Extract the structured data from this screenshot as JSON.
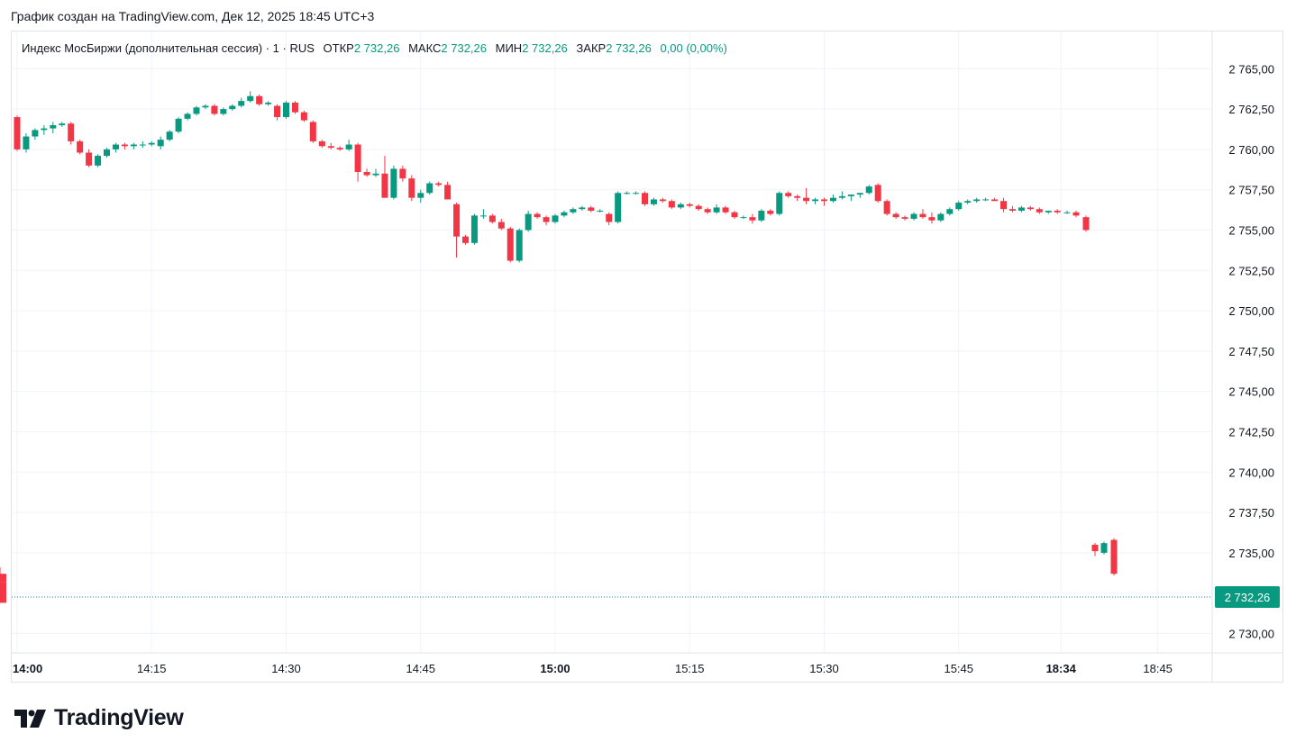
{
  "header": {
    "caption": "График создан на TradingView.com, Дек 12, 2025 18:45 UTC+3"
  },
  "legend": {
    "symbol": "Индекс МосБиржи (дополнительная сессия) · 1 · RUS",
    "open_label": "ОТКР",
    "open_value": "2 732,26",
    "high_label": "МАКС",
    "high_value": "2 732,26",
    "low_label": "МИН",
    "low_value": "2 732,26",
    "close_label": "ЗАКР",
    "close_value": "2 732,26",
    "change": "0,00 (0,00%)"
  },
  "price_tag": "2 732,26",
  "branding": {
    "logo_text": "TradingView"
  },
  "colors": {
    "up": "#089981",
    "down": "#f23645",
    "grid": "#f0f3fa",
    "text": "#131722",
    "last_price": "#089981"
  },
  "chart_data": {
    "type": "candlestick",
    "ylim": [
      2728.5,
      2767.5
    ],
    "y_ticks": [
      "2 765,00",
      "2 762,50",
      "2 760,00",
      "2 757,50",
      "2 755,00",
      "2 752,50",
      "2 750,00",
      "2 747,50",
      "2 745,00",
      "2 742,50",
      "2 740,00",
      "2 737,50",
      "2 735,00",
      "2 732,50",
      "2 730,00"
    ],
    "y_tick_values": [
      2765,
      2762.5,
      2760,
      2757.5,
      2755,
      2752.5,
      2750,
      2747.5,
      2745,
      2742.5,
      2740,
      2737.5,
      2735,
      2732.5,
      2730
    ],
    "x_ticks": [
      {
        "label": "14:00",
        "bar": 0,
        "bold": true
      },
      {
        "label": "14:15",
        "bar": 15,
        "bold": false
      },
      {
        "label": "14:30",
        "bar": 30,
        "bold": false
      },
      {
        "label": "14:45",
        "bar": 45,
        "bold": false
      },
      {
        "label": "15:00",
        "bar": 60,
        "bold": true
      },
      {
        "label": "15:15",
        "bar": 75,
        "bold": false
      },
      {
        "label": "15:30",
        "bar": 90,
        "bold": false
      },
      {
        "label": "15:45",
        "bar": 105,
        "bold": false
      },
      {
        "label": "18:34",
        "bar": 116,
        "bold": true
      },
      {
        "label": "18:45",
        "bar": 127,
        "bold": false
      }
    ],
    "last_price": 2732.26,
    "candles": [
      [
        2762.0,
        2762.1,
        2759.9,
        2760.0
      ],
      [
        2760.0,
        2761.0,
        2759.8,
        2760.8
      ],
      [
        2760.8,
        2761.3,
        2760.6,
        2761.2
      ],
      [
        2761.2,
        2761.5,
        2760.9,
        2761.3
      ],
      [
        2761.3,
        2761.7,
        2761.0,
        2761.5
      ],
      [
        2761.5,
        2761.7,
        2761.4,
        2761.6
      ],
      [
        2761.6,
        2761.7,
        2760.3,
        2760.5
      ],
      [
        2760.5,
        2760.6,
        2759.7,
        2759.8
      ],
      [
        2759.8,
        2760.0,
        2758.9,
        2759.0
      ],
      [
        2759.0,
        2759.7,
        2758.9,
        2759.6
      ],
      [
        2759.6,
        2760.1,
        2759.5,
        2760.0
      ],
      [
        2760.0,
        2760.4,
        2759.8,
        2760.3
      ],
      [
        2760.3,
        2760.4,
        2760.0,
        2760.2
      ],
      [
        2760.2,
        2760.4,
        2760.0,
        2760.3
      ],
      [
        2760.3,
        2760.5,
        2760.1,
        2760.3
      ],
      [
        2760.3,
        2760.5,
        2760.2,
        2760.4
      ],
      [
        2760.2,
        2760.8,
        2760.0,
        2760.6
      ],
      [
        2760.6,
        2761.2,
        2760.5,
        2761.1
      ],
      [
        2761.1,
        2762.0,
        2761.0,
        2761.9
      ],
      [
        2761.9,
        2762.3,
        2761.8,
        2762.2
      ],
      [
        2762.2,
        2762.7,
        2762.1,
        2762.6
      ],
      [
        2762.6,
        2762.8,
        2762.5,
        2762.7
      ],
      [
        2762.7,
        2762.8,
        2762.1,
        2762.2
      ],
      [
        2762.2,
        2762.6,
        2762.1,
        2762.5
      ],
      [
        2762.5,
        2762.8,
        2762.4,
        2762.7
      ],
      [
        2762.7,
        2763.2,
        2762.6,
        2763.0
      ],
      [
        2763.0,
        2763.6,
        2762.9,
        2763.3
      ],
      [
        2763.3,
        2763.4,
        2762.7,
        2762.8
      ],
      [
        2762.8,
        2763.0,
        2762.7,
        2762.9
      ],
      [
        2762.7,
        2762.8,
        2761.8,
        2762.0
      ],
      [
        2762.0,
        2763.0,
        2761.9,
        2762.9
      ],
      [
        2762.9,
        2763.0,
        2762.2,
        2762.3
      ],
      [
        2762.3,
        2762.4,
        2761.7,
        2761.8
      ],
      [
        2761.7,
        2761.8,
        2760.4,
        2760.5
      ],
      [
        2760.5,
        2760.6,
        2760.1,
        2760.2
      ],
      [
        2760.2,
        2760.4,
        2760.0,
        2760.1
      ],
      [
        2760.1,
        2760.2,
        2759.9,
        2760.0
      ],
      [
        2760.0,
        2760.6,
        2759.9,
        2760.3
      ],
      [
        2760.3,
        2760.4,
        2758.0,
        2758.6
      ],
      [
        2758.6,
        2758.8,
        2758.3,
        2758.4
      ],
      [
        2758.4,
        2758.8,
        2758.3,
        2758.5
      ],
      [
        2758.5,
        2759.6,
        2757.0,
        2757.0
      ],
      [
        2757.0,
        2759.0,
        2756.9,
        2758.8
      ],
      [
        2758.8,
        2759.0,
        2758.0,
        2758.2
      ],
      [
        2758.2,
        2758.4,
        2756.8,
        2757.0
      ],
      [
        2757.0,
        2757.5,
        2756.7,
        2757.3
      ],
      [
        2757.3,
        2758.0,
        2757.2,
        2757.9
      ],
      [
        2757.9,
        2758.0,
        2757.7,
        2757.8
      ],
      [
        2757.8,
        2758.0,
        2756.9,
        2756.9
      ],
      [
        2756.6,
        2756.7,
        2753.3,
        2754.6
      ],
      [
        2754.6,
        2754.7,
        2754.1,
        2754.2
      ],
      [
        2754.2,
        2756.0,
        2754.1,
        2755.9
      ],
      [
        2755.9,
        2756.3,
        2755.7,
        2755.9
      ],
      [
        2755.9,
        2756.0,
        2755.4,
        2755.5
      ],
      [
        2755.5,
        2755.7,
        2755.0,
        2755.1
      ],
      [
        2755.1,
        2755.2,
        2753.0,
        2753.1
      ],
      [
        2753.1,
        2755.1,
        2753.0,
        2755.0
      ],
      [
        2755.0,
        2756.2,
        2754.9,
        2756.0
      ],
      [
        2756.0,
        2756.1,
        2755.7,
        2755.8
      ],
      [
        2755.8,
        2755.9,
        2755.3,
        2755.5
      ],
      [
        2755.5,
        2756.0,
        2755.4,
        2755.9
      ],
      [
        2755.9,
        2756.2,
        2755.8,
        2756.1
      ],
      [
        2756.1,
        2756.4,
        2756.0,
        2756.3
      ],
      [
        2756.3,
        2756.5,
        2756.2,
        2756.4
      ],
      [
        2756.4,
        2756.5,
        2756.1,
        2756.2
      ],
      [
        2756.2,
        2756.3,
        2756.1,
        2756.2
      ],
      [
        2756.0,
        2756.1,
        2755.3,
        2755.5
      ],
      [
        2755.5,
        2757.4,
        2755.4,
        2757.3
      ],
      [
        2757.3,
        2757.4,
        2757.2,
        2757.3
      ],
      [
        2757.3,
        2757.4,
        2757.2,
        2757.3
      ],
      [
        2757.3,
        2757.4,
        2756.5,
        2756.6
      ],
      [
        2756.6,
        2757.0,
        2756.5,
        2756.9
      ],
      [
        2756.9,
        2757.0,
        2756.7,
        2756.8
      ],
      [
        2756.8,
        2756.9,
        2756.3,
        2756.4
      ],
      [
        2756.4,
        2756.7,
        2756.3,
        2756.6
      ],
      [
        2756.6,
        2756.7,
        2756.4,
        2756.5
      ],
      [
        2756.5,
        2756.6,
        2756.2,
        2756.3
      ],
      [
        2756.3,
        2756.4,
        2756.0,
        2756.1
      ],
      [
        2756.1,
        2756.6,
        2756.0,
        2756.4
      ],
      [
        2756.4,
        2756.5,
        2756.0,
        2756.1
      ],
      [
        2756.1,
        2756.2,
        2755.7,
        2755.8
      ],
      [
        2755.8,
        2755.9,
        2755.7,
        2755.8
      ],
      [
        2755.8,
        2756.0,
        2755.4,
        2755.6
      ],
      [
        2755.6,
        2756.3,
        2755.5,
        2756.2
      ],
      [
        2756.2,
        2756.3,
        2755.9,
        2756.0
      ],
      [
        2756.0,
        2757.4,
        2755.9,
        2757.3
      ],
      [
        2757.3,
        2757.4,
        2757.0,
        2757.1
      ],
      [
        2757.1,
        2757.2,
        2756.8,
        2757.0
      ],
      [
        2757.0,
        2757.6,
        2756.6,
        2756.8
      ],
      [
        2756.8,
        2757.0,
        2756.6,
        2756.9
      ],
      [
        2756.9,
        2757.0,
        2756.5,
        2756.8
      ],
      [
        2756.8,
        2757.2,
        2756.7,
        2757.0
      ],
      [
        2757.0,
        2757.4,
        2756.9,
        2757.1
      ],
      [
        2757.1,
        2757.2,
        2756.8,
        2757.2
      ],
      [
        2757.2,
        2757.3,
        2757.0,
        2757.3
      ],
      [
        2757.3,
        2757.8,
        2757.2,
        2757.7
      ],
      [
        2757.8,
        2757.9,
        2756.7,
        2756.8
      ],
      [
        2756.8,
        2756.9,
        2755.9,
        2756.0
      ],
      [
        2756.0,
        2756.1,
        2755.7,
        2755.8
      ],
      [
        2755.8,
        2755.9,
        2755.6,
        2755.7
      ],
      [
        2755.7,
        2756.1,
        2755.6,
        2756.0
      ],
      [
        2756.0,
        2756.3,
        2755.7,
        2755.8
      ],
      [
        2755.8,
        2756.1,
        2755.4,
        2755.6
      ],
      [
        2755.6,
        2756.1,
        2755.5,
        2756.0
      ],
      [
        2756.0,
        2756.4,
        2755.9,
        2756.3
      ],
      [
        2756.3,
        2756.8,
        2756.2,
        2756.7
      ],
      [
        2756.7,
        2756.9,
        2756.6,
        2756.8
      ],
      [
        2756.8,
        2757.0,
        2756.7,
        2756.9
      ],
      [
        2756.9,
        2757.0,
        2756.8,
        2756.9
      ],
      [
        2756.9,
        2757.0,
        2756.8,
        2756.8
      ],
      [
        2756.8,
        2757.0,
        2756.1,
        2756.3
      ],
      [
        2756.3,
        2756.5,
        2756.1,
        2756.2
      ],
      [
        2756.2,
        2756.5,
        2756.1,
        2756.4
      ],
      [
        2756.4,
        2756.5,
        2756.2,
        2756.3
      ],
      [
        2756.3,
        2756.4,
        2756.0,
        2756.1
      ],
      [
        2756.1,
        2756.2,
        2756.0,
        2756.2
      ],
      [
        2756.2,
        2756.3,
        2756.0,
        2756.1
      ],
      [
        2756.1,
        2756.2,
        2756.0,
        2756.1
      ],
      [
        2756.1,
        2756.2,
        2755.8,
        2755.9
      ],
      [
        2755.8,
        2755.9,
        2754.9,
        2755.0
      ],
      [
        2735.5,
        2735.6,
        2734.8,
        2735.1
      ],
      [
        2735.0,
        2735.7,
        2734.9,
        2735.6
      ],
      [
        2735.8,
        2735.9,
        2733.6,
        2733.7
      ],
      [
        2733.7,
        2734.1,
        2733.1,
        2733.2
      ],
      [
        2733.2,
        2733.4,
        2732.2,
        2732.4
      ],
      [
        2732.4,
        2733.1,
        2731.9,
        2731.9
      ]
    ],
    "bar_x": {
      "first": 19,
      "step": 9.95,
      "gap_after": 117,
      "gap_x": [
        1184,
        1194,
        1205,
        1215,
        1225,
        1236
      ]
    }
  }
}
